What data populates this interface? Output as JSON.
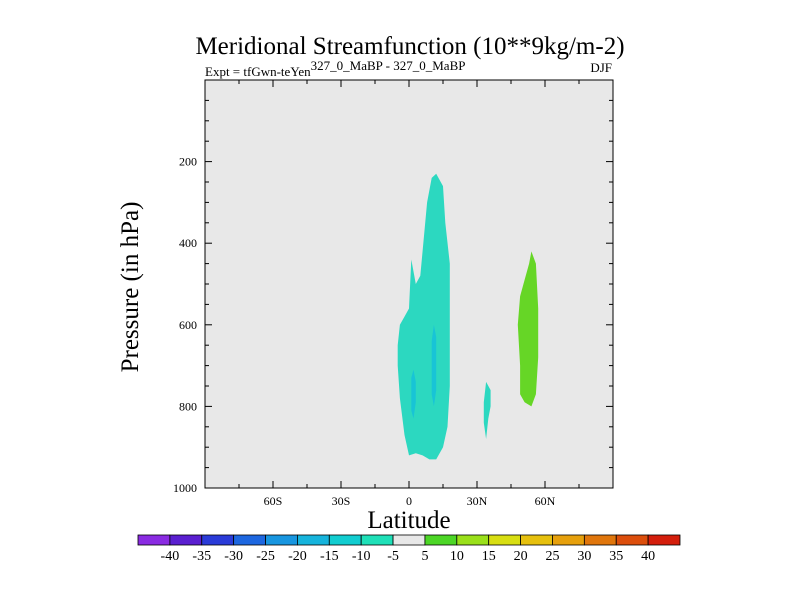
{
  "chart_data": {
    "type": "heatmap",
    "title": "Meridional Streamfunction (10**9kg/m-2)",
    "subtitle_left_base": "Expt = tfGwn-teYen",
    "subtitle_left_super": "327_0_MaBP - 327_0_MaBP",
    "subtitle_right": "DJF",
    "xlabel": "Latitude",
    "ylabel": "Pressure (in hPa)",
    "xlim": [
      -90,
      90
    ],
    "ylim": [
      1000,
      0
    ],
    "xticks": [
      {
        "value": -60,
        "label": "60S"
      },
      {
        "value": -30,
        "label": "30S"
      },
      {
        "value": 0,
        "label": "0"
      },
      {
        "value": 30,
        "label": "30N"
      },
      {
        "value": 60,
        "label": "60N"
      }
    ],
    "yticks": [
      {
        "value": 200,
        "label": "200"
      },
      {
        "value": 400,
        "label": "400"
      },
      {
        "value": 600,
        "label": "600"
      },
      {
        "value": 800,
        "label": "800"
      },
      {
        "value": 1000,
        "label": "1000"
      }
    ],
    "background_color": "#e8e8e8",
    "colorbar": {
      "labels": [
        "-40",
        "-35",
        "-30",
        "-25",
        "-20",
        "-15",
        "-10",
        "-5",
        "5",
        "10",
        "15",
        "20",
        "25",
        "30",
        "35",
        "40"
      ],
      "colors": [
        "#8a2be2",
        "#5a1fd0",
        "#2a3bd8",
        "#1d67e0",
        "#1896e0",
        "#16b4dc",
        "#12cdd0",
        "#1fe0b8",
        "#e8e8e8",
        "#4cd626",
        "#9ae01a",
        "#d8de12",
        "#e6c00e",
        "#e6a00c",
        "#e0760c",
        "#dc4e0c",
        "#d41e0c"
      ]
    },
    "regions": [
      {
        "name": "negative-cell-main",
        "level": "-10 to -5",
        "color": "#2cd8c0",
        "points": [
          [
            -5,
            650
          ],
          [
            -4,
            600
          ],
          [
            -2,
            580
          ],
          [
            0,
            560
          ],
          [
            1,
            440
          ],
          [
            3,
            500
          ],
          [
            5,
            480
          ],
          [
            8,
            300
          ],
          [
            10,
            240
          ],
          [
            12,
            230
          ],
          [
            15,
            260
          ],
          [
            16,
            350
          ],
          [
            18,
            450
          ],
          [
            18,
            600
          ],
          [
            18,
            750
          ],
          [
            17,
            850
          ],
          [
            15,
            900
          ],
          [
            12,
            930
          ],
          [
            9,
            930
          ],
          [
            6,
            920
          ],
          [
            3,
            915
          ],
          [
            0,
            920
          ],
          [
            -2,
            870
          ],
          [
            -4,
            780
          ],
          [
            -5,
            700
          ]
        ]
      },
      {
        "name": "negative-cell-inner",
        "level": "-15 to -10",
        "color": "#18c4d6",
        "points": [
          [
            1,
            730
          ],
          [
            2,
            710
          ],
          [
            3,
            740
          ],
          [
            3,
            790
          ],
          [
            2,
            830
          ],
          [
            1,
            810
          ]
        ]
      },
      {
        "name": "negative-cell-inner-2",
        "level": "-15 to -10",
        "color": "#18c4d6",
        "points": [
          [
            10,
            640
          ],
          [
            11,
            600
          ],
          [
            12,
            630
          ],
          [
            12,
            760
          ],
          [
            11,
            800
          ],
          [
            10,
            770
          ]
        ]
      },
      {
        "name": "negative-cell-small",
        "level": "-10 to -5",
        "color": "#2cd8c0",
        "points": [
          [
            33,
            790
          ],
          [
            34,
            740
          ],
          [
            36,
            760
          ],
          [
            36,
            800
          ],
          [
            35,
            830
          ],
          [
            34,
            880
          ],
          [
            33,
            840
          ]
        ]
      },
      {
        "name": "positive-cell",
        "level": "5 to 10",
        "color": "#66d626",
        "points": [
          [
            49,
            530
          ],
          [
            51,
            490
          ],
          [
            53,
            450
          ],
          [
            54,
            420
          ],
          [
            56,
            450
          ],
          [
            57,
            560
          ],
          [
            57,
            680
          ],
          [
            56,
            770
          ],
          [
            54,
            800
          ],
          [
            51,
            790
          ],
          [
            49,
            770
          ],
          [
            49,
            700
          ],
          [
            48,
            600
          ]
        ]
      }
    ]
  }
}
